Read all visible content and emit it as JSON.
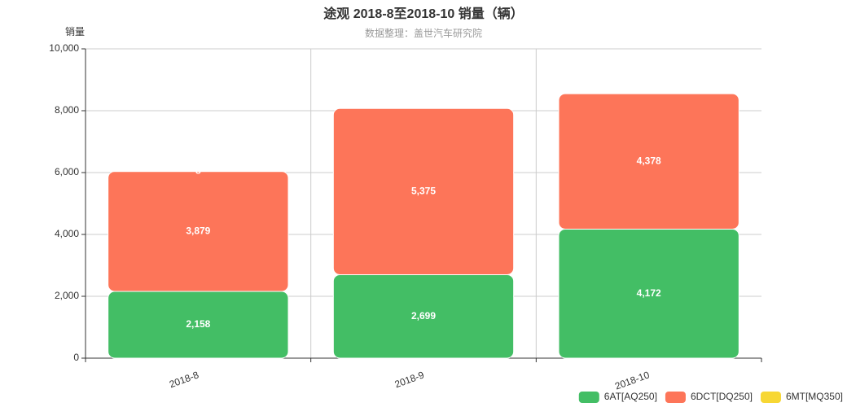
{
  "chart_data": {
    "type": "stacked_bar",
    "title": "途观 2018-8至2018-10 销量（辆）",
    "subtitle": "数据整理：盖世汽车研究院",
    "y_label": "销量",
    "categories": [
      "2018-8",
      "2018-9",
      "2018-10"
    ],
    "series": [
      {
        "name": "6AT[AQ250]",
        "color": "#43be65",
        "values": [
          2158,
          2699,
          4172
        ],
        "value_labels": [
          "2,158",
          "2,699",
          "4,172"
        ]
      },
      {
        "name": "6DCT[DQ250]",
        "color": "#fd7559",
        "values": [
          3879,
          5375,
          4378
        ],
        "value_labels": [
          "3,879",
          "5,375",
          "4,378"
        ]
      },
      {
        "name": "6MT[MQ350]",
        "color": "#f7d734",
        "values": [
          8,
          null,
          null
        ]
      }
    ],
    "ylim": [
      0,
      10000
    ],
    "yticks": [
      0,
      {
        "value": 2000,
        "label": "2,000"
      },
      {
        "value": 4000,
        "label": "4,000"
      },
      {
        "value": 6000,
        "label": "6,000"
      },
      {
        "value": 8000,
        "label": "8,000"
      },
      {
        "value": 10000,
        "label": "10,000"
      }
    ],
    "grid": true
  }
}
